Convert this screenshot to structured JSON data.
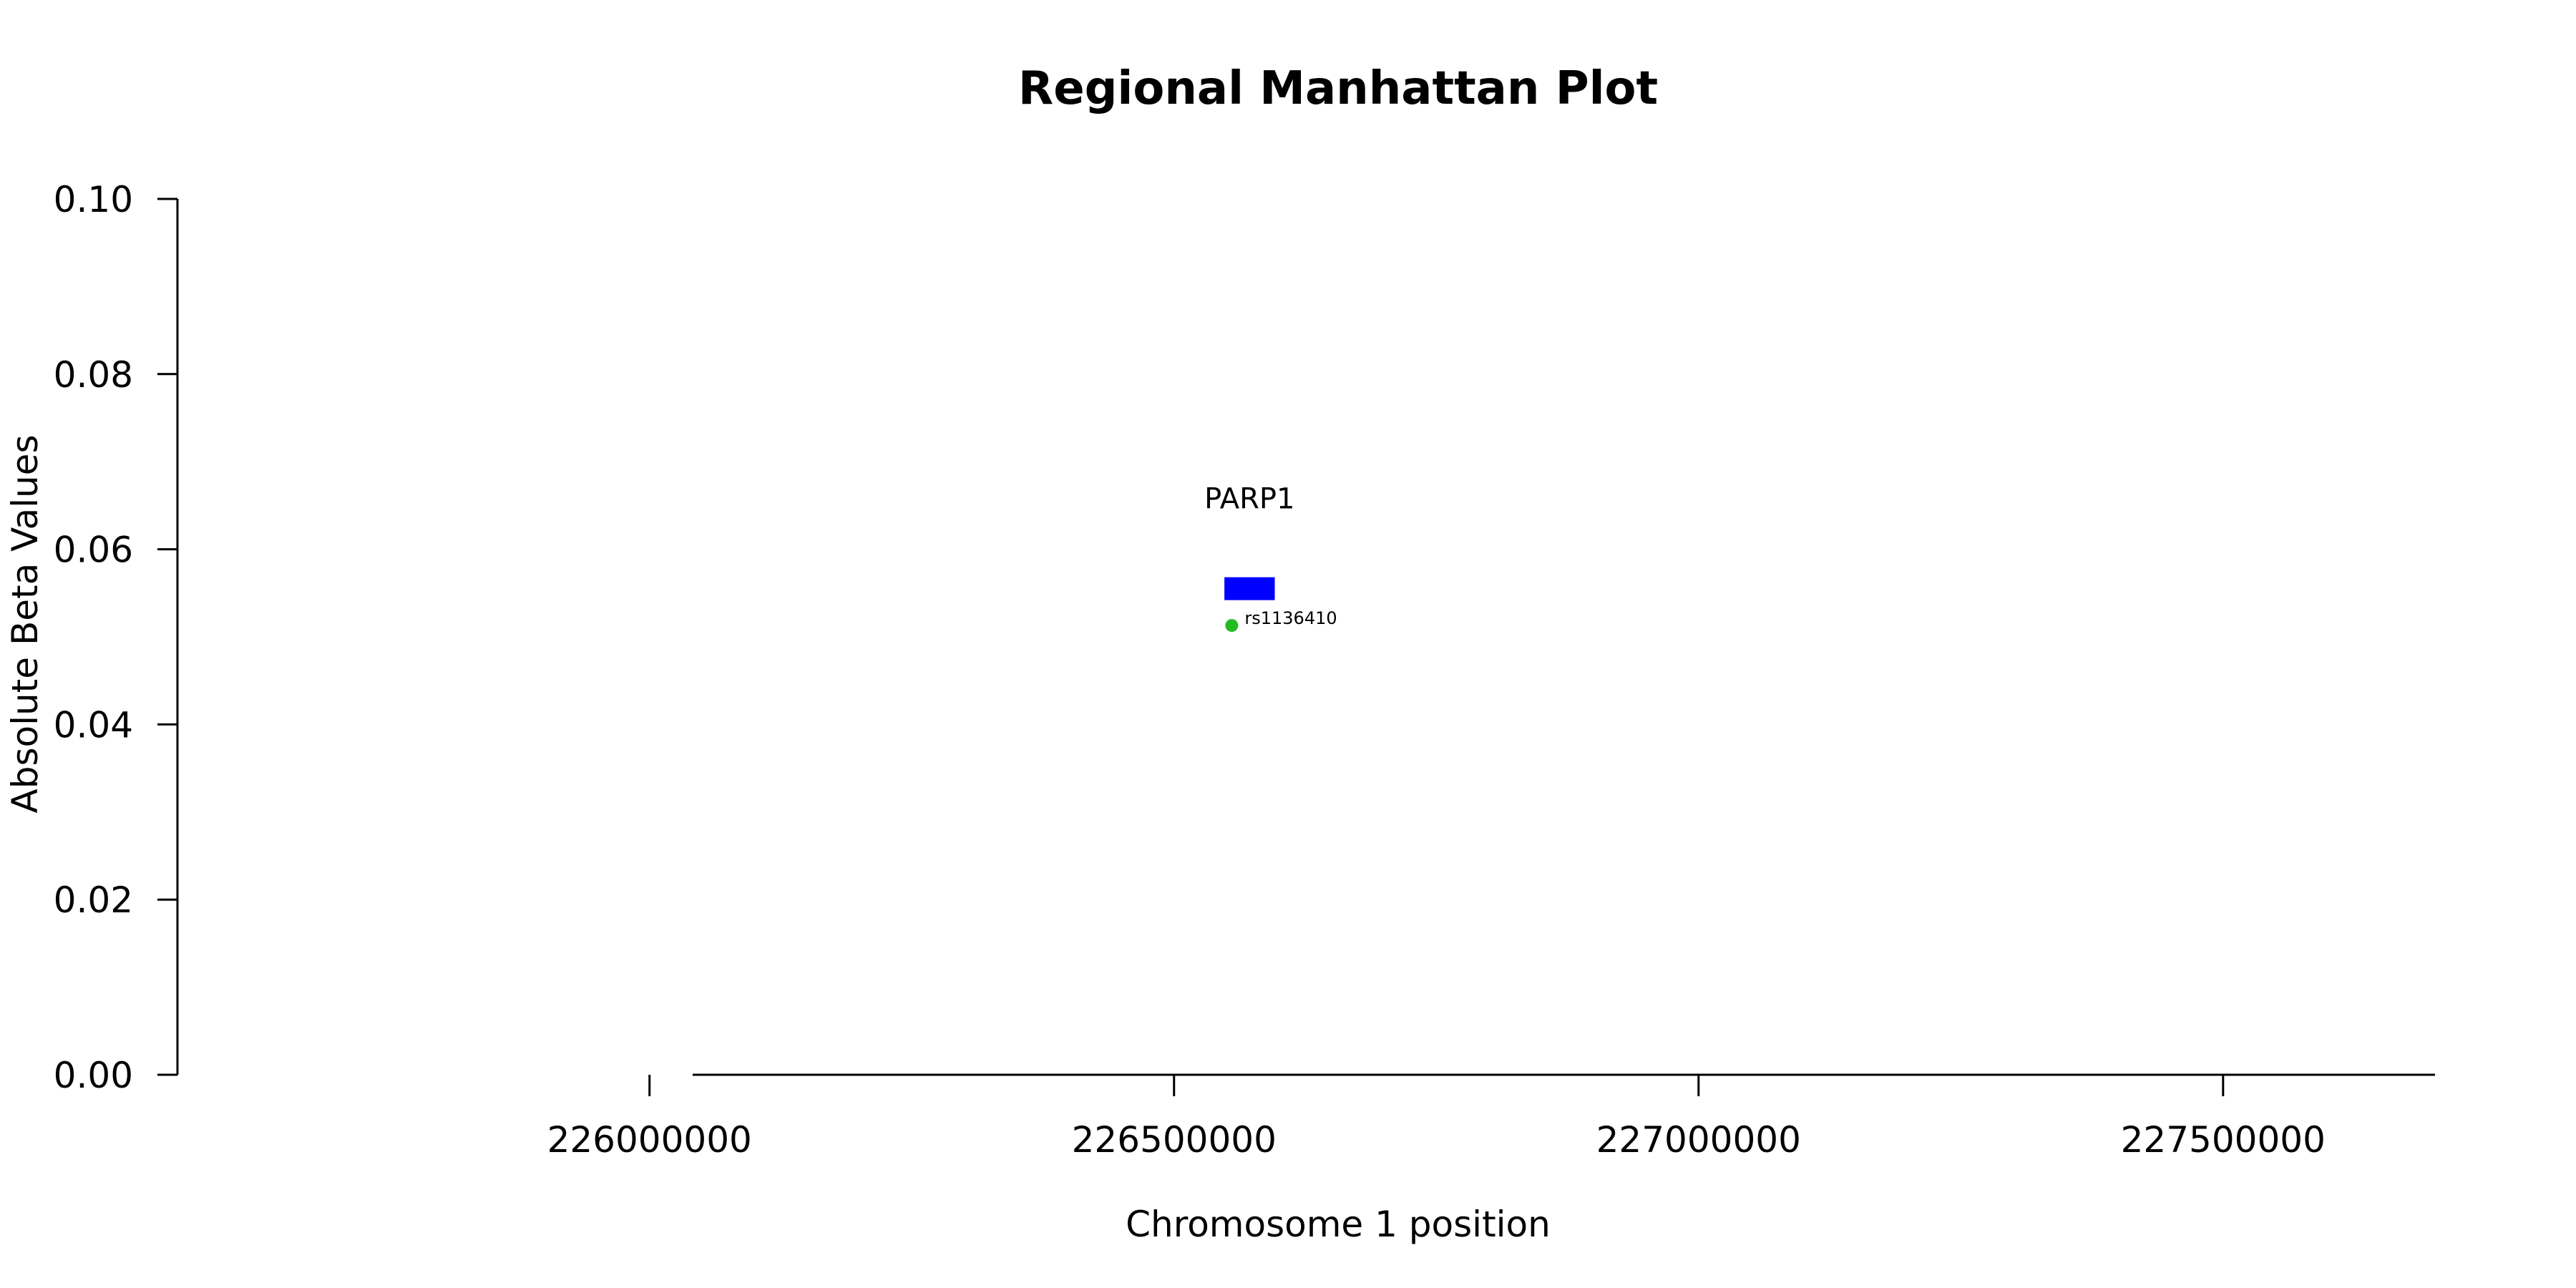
{
  "chart_data": {
    "type": "scatter",
    "title": "Regional Manhattan Plot",
    "xlabel": "Chromosome 1 position",
    "ylabel": "Absolute Beta Values",
    "xlim": [
      225550000,
      227700000
    ],
    "ylim": [
      0,
      0.1
    ],
    "x_ticks": [
      226000000,
      226500000,
      227000000,
      227500000
    ],
    "x_tick_labels": [
      "226000000",
      "226500000",
      "227000000",
      "227500000"
    ],
    "y_ticks": [
      0,
      0.02,
      0.04,
      0.06,
      0.08,
      0.1
    ],
    "y_tick_labels": [
      "0.00",
      "0.02",
      "0.04",
      "0.06",
      "0.08",
      "0.10"
    ],
    "grid": false,
    "genes": [
      {
        "name": "PARP1",
        "start": 226548000,
        "end": 226596000,
        "y": 0.0555,
        "color": "#0000ff"
      }
    ],
    "points": [
      {
        "label": "rs1136410",
        "x": 226555000,
        "y": 0.0513,
        "color": "#22bb22"
      }
    ]
  }
}
